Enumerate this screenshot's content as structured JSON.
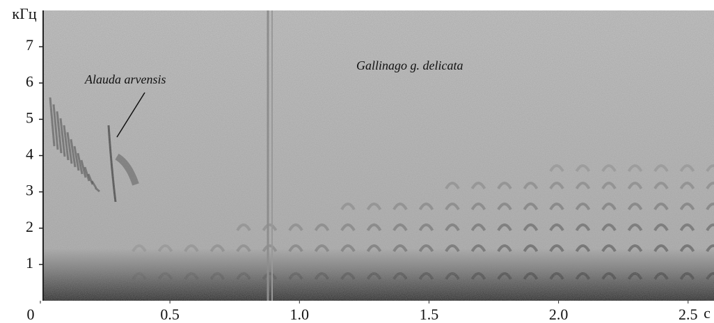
{
  "chart_data": {
    "type": "spectrogram",
    "y_label": "кГц",
    "x_label": "с",
    "annotations": [
      "Alauda arvensis",
      "Gallinago g. delicata"
    ],
    "xlim": [
      0,
      2.6
    ],
    "xticks": [
      0,
      0.5,
      {
        "value": 1,
        "label": "1.0"
      },
      1.5,
      {
        "value": 2,
        "label": "2.0"
      },
      2.5
    ],
    "ylim": [
      0,
      8
    ],
    "yticks": [
      1,
      2,
      3,
      4,
      5,
      6,
      7
    ]
  }
}
